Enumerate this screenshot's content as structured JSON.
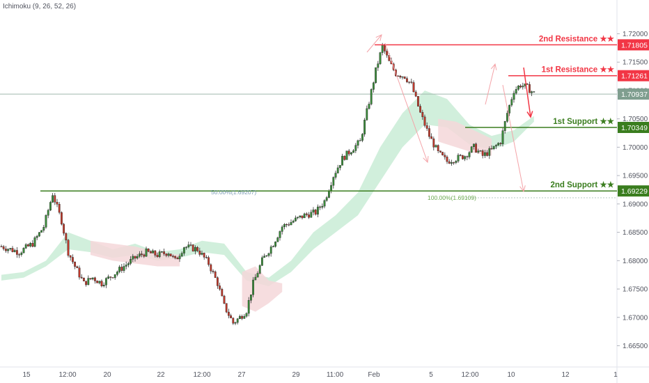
{
  "indicator": {
    "label": "Ichimoku (9, 26, 52, 26)"
  },
  "chart_data": {
    "type": "candlestick",
    "instrument": "",
    "ylim": [
      1.6615,
      1.7235
    ],
    "y_ticks": [
      "1.72000",
      "1.71500",
      "1.71000",
      "1.70500",
      "1.70000",
      "1.69500",
      "1.69000",
      "1.68500",
      "1.68000",
      "1.67500",
      "1.67000",
      "1.66500"
    ],
    "x_ticks": [
      "15",
      "12:00",
      "20",
      "22",
      "12:00",
      "27",
      "29",
      "11:00",
      "Feb",
      "5",
      "12:00",
      "10",
      "12",
      "1"
    ],
    "current_price": {
      "label": "1.70937",
      "value": 1.70937,
      "color": "#7f9e8f"
    },
    "levels": [
      {
        "name": "2nd Resistance ★★",
        "price_label": "1.71805",
        "value": 1.71805,
        "color": "#f23645"
      },
      {
        "name": "1st Resistance ★★",
        "price_label": "1.71261",
        "value": 1.71261,
        "color": "#f23645"
      },
      {
        "name": "1st Support ★★",
        "price_label": "1.70349",
        "value": 1.70349,
        "color": "#3a7d1e"
      },
      {
        "name": "2nd Support ★★",
        "price_label": "1.69229",
        "value": 1.69229,
        "color": "#3a7d1e"
      }
    ],
    "fib_annotations": [
      {
        "text": "50.00%(1.69207)",
        "value": 1.69207
      },
      {
        "text": "100.00%(1.69109)",
        "value": 1.69109
      }
    ],
    "price_path": [
      [
        0,
        1.6825
      ],
      [
        8,
        1.6815
      ],
      [
        14,
        1.683
      ],
      [
        19,
        1.686
      ],
      [
        23,
        1.6918
      ],
      [
        27,
        1.687
      ],
      [
        30,
        1.6815
      ],
      [
        33,
        1.679
      ],
      [
        37,
        1.676
      ],
      [
        41,
        1.677
      ],
      [
        45,
        1.676
      ],
      [
        50,
        1.6775
      ],
      [
        55,
        1.679
      ],
      [
        60,
        1.6805
      ],
      [
        65,
        1.6815
      ],
      [
        70,
        1.681
      ],
      [
        75,
        1.6815
      ],
      [
        78,
        1.68
      ],
      [
        82,
        1.6825
      ],
      [
        88,
        1.682
      ],
      [
        93,
        1.6795
      ],
      [
        97,
        1.676
      ],
      [
        100,
        1.672
      ],
      [
        104,
        1.669
      ],
      [
        107,
        1.67
      ],
      [
        110,
        1.6712
      ],
      [
        113,
        1.676
      ],
      [
        117,
        1.68
      ],
      [
        122,
        1.683
      ],
      [
        126,
        1.686
      ],
      [
        131,
        1.687
      ],
      [
        136,
        1.688
      ],
      [
        141,
        1.6885
      ],
      [
        145,
        1.6905
      ],
      [
        149,
        1.695
      ],
      [
        153,
        1.698
      ],
      [
        157,
        1.6995
      ],
      [
        161,
        1.701
      ],
      [
        165,
        1.708
      ],
      [
        168,
        1.7135
      ],
      [
        171,
        1.7178
      ],
      [
        174,
        1.715
      ],
      [
        177,
        1.713
      ],
      [
        181,
        1.7125
      ],
      [
        184,
        1.711
      ],
      [
        188,
        1.706
      ],
      [
        192,
        1.702
      ],
      [
        196,
        1.699
      ],
      [
        200,
        1.6975
      ],
      [
        204,
        1.698
      ],
      [
        208,
        1.6985
      ],
      [
        212,
        1.7
      ],
      [
        216,
        1.6985
      ],
      [
        220,
        1.6995
      ],
      [
        224,
        1.701
      ],
      [
        227,
        1.706
      ],
      [
        230,
        1.71
      ],
      [
        233,
        1.711
      ],
      [
        236,
        1.7105
      ],
      [
        239,
        1.7095
      ]
    ],
    "cloud_segments": [
      {
        "color": "#c9ecd6",
        "points": [
          [
            0,
            1.6775
          ],
          [
            10,
            1.678
          ],
          [
            20,
            1.68
          ],
          [
            30,
            1.685
          ],
          [
            40,
            1.6835
          ],
          [
            50,
            1.682
          ],
          [
            60,
            1.683
          ],
          [
            70,
            1.6815
          ],
          [
            80,
            1.682
          ],
          [
            90,
            1.6835
          ],
          [
            100,
            1.683
          ],
          [
            110,
            1.678
          ],
          [
            120,
            1.677
          ],
          [
            130,
            1.68
          ],
          [
            140,
            1.685
          ],
          [
            150,
            1.688
          ],
          [
            160,
            1.692
          ],
          [
            170,
            1.7
          ],
          [
            180,
            1.706
          ],
          [
            190,
            1.71
          ],
          [
            200,
            1.7085
          ],
          [
            210,
            1.704
          ],
          [
            220,
            1.702
          ],
          [
            230,
            1.703
          ],
          [
            239,
            1.7055
          ]
        ],
        "lower": [
          [
            0,
            1.6765
          ],
          [
            10,
            1.677
          ],
          [
            20,
            1.679
          ],
          [
            30,
            1.682
          ],
          [
            40,
            1.6815
          ],
          [
            50,
            1.6805
          ],
          [
            60,
            1.681
          ],
          [
            70,
            1.68
          ],
          [
            80,
            1.6805
          ],
          [
            90,
            1.6815
          ],
          [
            100,
            1.681
          ],
          [
            110,
            1.6765
          ],
          [
            120,
            1.6755
          ],
          [
            130,
            1.678
          ],
          [
            140,
            1.682
          ],
          [
            150,
            1.685
          ],
          [
            160,
            1.688
          ],
          [
            170,
            1.694
          ],
          [
            180,
            1.7
          ],
          [
            190,
            1.704
          ],
          [
            200,
            1.7035
          ],
          [
            210,
            1.7005
          ],
          [
            220,
            1.6995
          ],
          [
            230,
            1.701
          ],
          [
            239,
            1.7045
          ]
        ]
      },
      {
        "color": "#f5d7d9",
        "points": [
          [
            40,
            1.6835
          ],
          [
            50,
            1.683
          ],
          [
            60,
            1.6825
          ],
          [
            70,
            1.6815
          ],
          [
            80,
            1.681
          ]
        ],
        "lower": [
          [
            40,
            1.681
          ],
          [
            50,
            1.68
          ],
          [
            60,
            1.6795
          ],
          [
            70,
            1.679
          ],
          [
            80,
            1.679
          ]
        ]
      },
      {
        "color": "#f5d7d9",
        "points": [
          [
            108,
            1.678
          ],
          [
            114,
            1.679
          ],
          [
            120,
            1.6765
          ],
          [
            126,
            1.676
          ]
        ],
        "lower": [
          [
            108,
            1.672
          ],
          [
            114,
            1.671
          ],
          [
            120,
            1.6725
          ],
          [
            126,
            1.6745
          ]
        ]
      },
      {
        "color": "#f5d7d9",
        "points": [
          [
            196,
            1.705
          ],
          [
            204,
            1.7045
          ],
          [
            212,
            1.703
          ],
          [
            220,
            1.7015
          ]
        ],
        "lower": [
          [
            196,
            1.701
          ],
          [
            204,
            1.7
          ],
          [
            212,
            1.699
          ],
          [
            220,
            1.6985
          ]
        ]
      }
    ]
  }
}
